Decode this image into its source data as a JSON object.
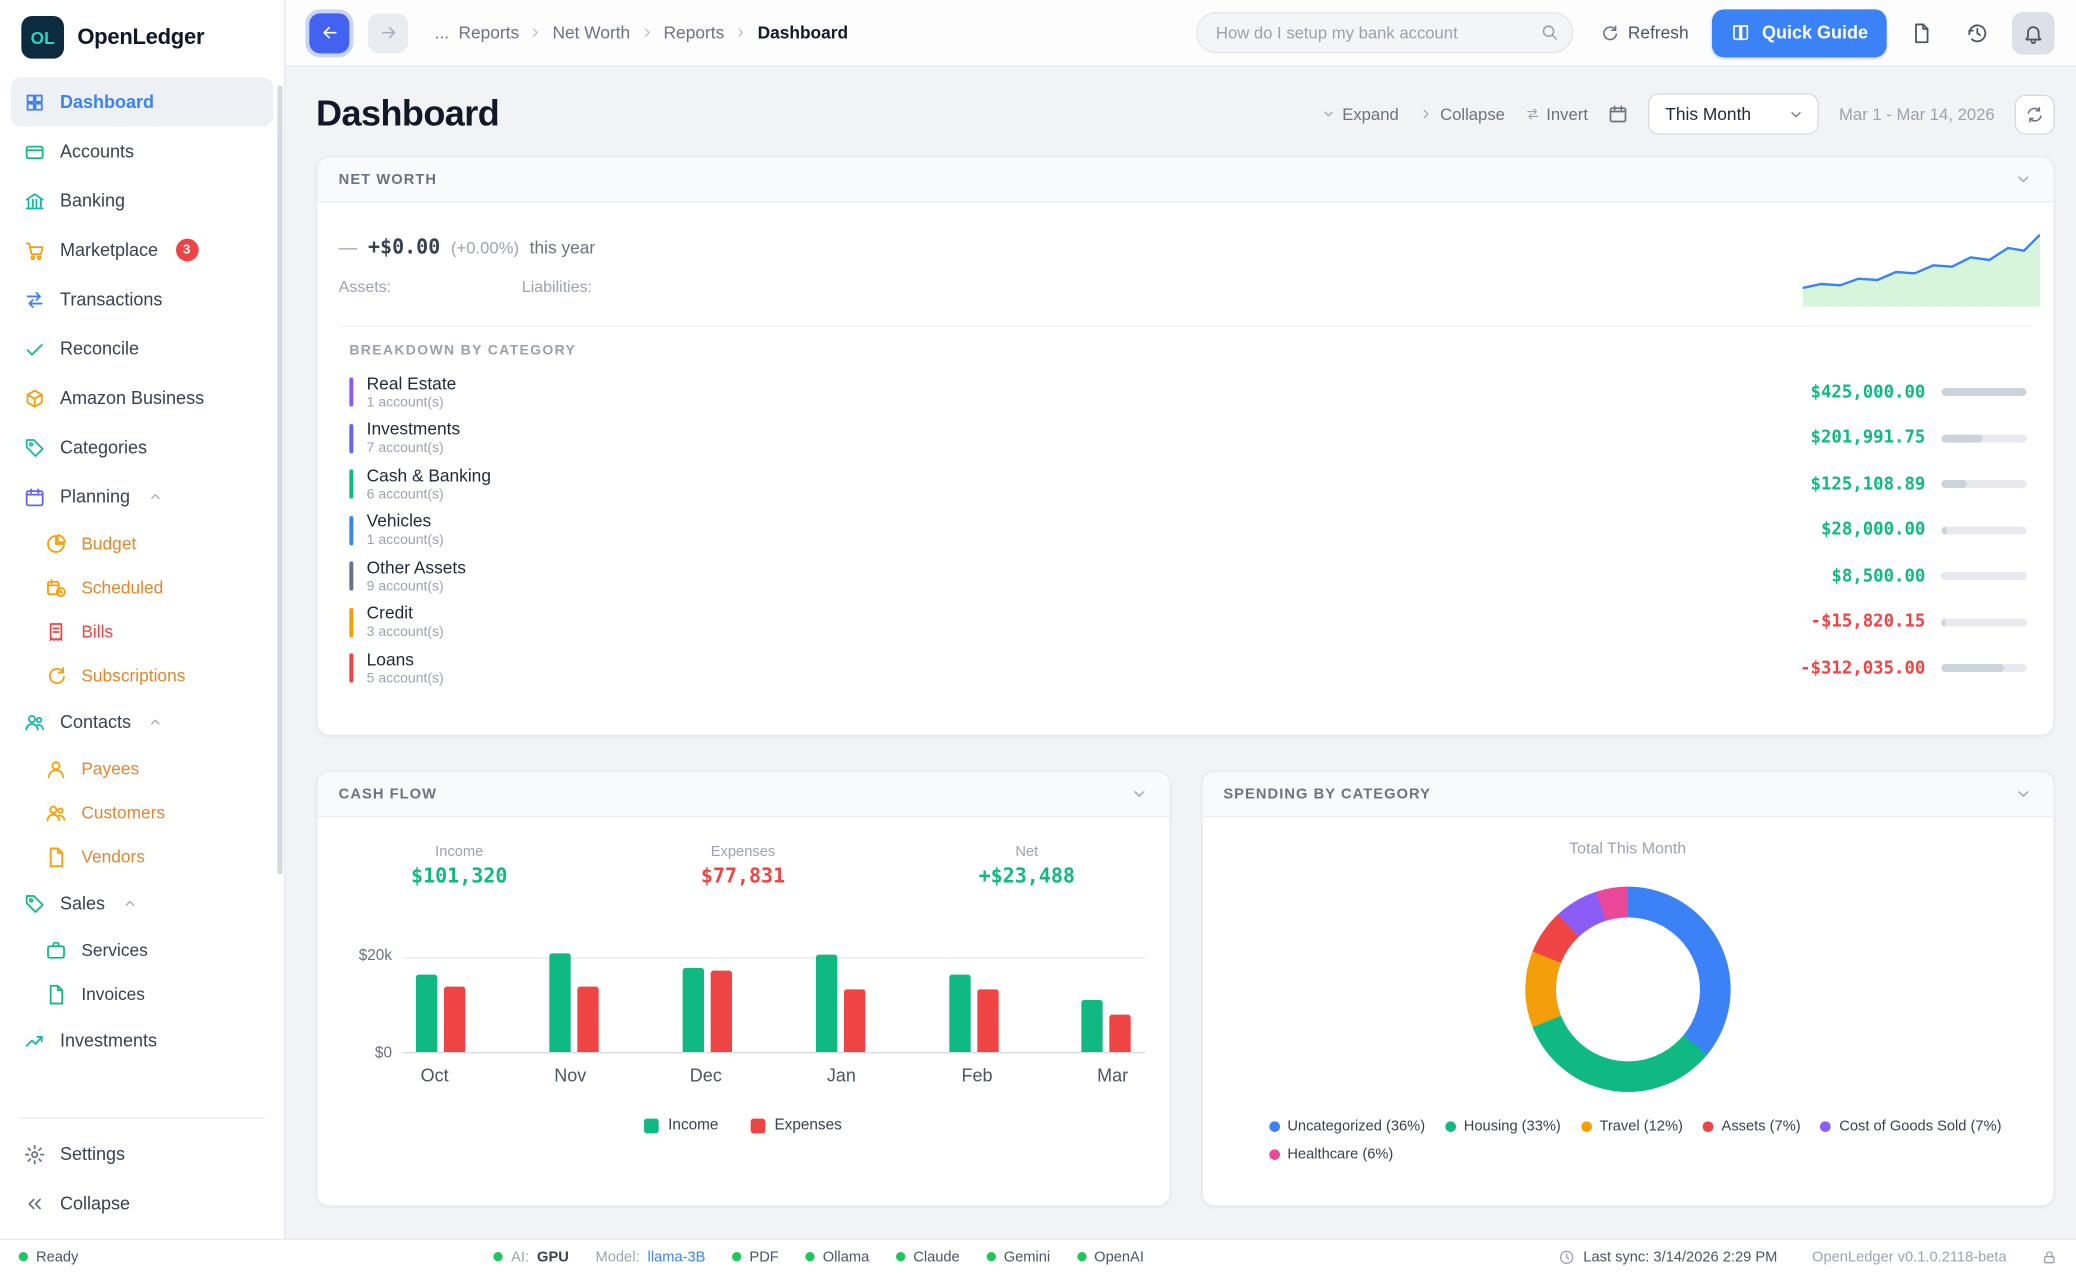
{
  "palette": {
    "accent_blue": "#3b82f6",
    "positive_green": "#10b981",
    "negative_red": "#ef4444",
    "teal": "#14b8a6",
    "orange": "#f59e0b",
    "purple": "#8b5cf6",
    "pink": "#ec4899"
  },
  "app": {
    "logo_text": "OL",
    "name": "OpenLedger"
  },
  "topbar": {
    "breadcrumb_ellipsis": "...",
    "breadcrumb": [
      "Reports",
      "Net Worth",
      "Reports",
      "Dashboard"
    ],
    "search_placeholder": "How do I setup my bank account",
    "refresh_label": "Refresh",
    "quick_guide_label": "Quick Guide"
  },
  "sidebar": {
    "items": [
      {
        "label": "Dashboard"
      },
      {
        "label": "Accounts"
      },
      {
        "label": "Banking"
      },
      {
        "label": "Marketplace",
        "badge": "3"
      },
      {
        "label": "Transactions"
      },
      {
        "label": "Reconcile"
      },
      {
        "label": "Amazon Business"
      },
      {
        "label": "Categories"
      },
      {
        "label": "Planning"
      },
      {
        "label": "Budget"
      },
      {
        "label": "Scheduled"
      },
      {
        "label": "Bills"
      },
      {
        "label": "Subscriptions"
      },
      {
        "label": "Contacts"
      },
      {
        "label": "Payees"
      },
      {
        "label": "Customers"
      },
      {
        "label": "Vendors"
      },
      {
        "label": "Sales"
      },
      {
        "label": "Services"
      },
      {
        "label": "Invoices"
      },
      {
        "label": "Investments"
      },
      {
        "label": "Settings"
      },
      {
        "label": "Collapse"
      }
    ]
  },
  "header": {
    "title": "Dashboard",
    "expand_label": "Expand",
    "collapse_label": "Collapse",
    "invert_label": "Invert",
    "period_selected": "This Month",
    "date_range": "Mar 1 - Mar 14, 2026"
  },
  "net_worth": {
    "section_title": "NET WORTH",
    "trend_dash": "—",
    "change_amount": "+$0.00",
    "change_percent": "(+0.00%)",
    "change_period": "this year",
    "assets_label": "Assets:",
    "liabilities_label": "Liabilities:",
    "breakdown_title": "BREAKDOWN BY CATEGORY",
    "rows": [
      {
        "name": "Real Estate",
        "accounts": "1 account(s)",
        "amount": "$425,000.00",
        "color": "#8b5cf6",
        "fill_pct": 100
      },
      {
        "name": "Investments",
        "accounts": "7 account(s)",
        "amount": "$201,991.75",
        "color": "#6366f1",
        "fill_pct": 48
      },
      {
        "name": "Cash & Banking",
        "accounts": "6 account(s)",
        "amount": "$125,108.89",
        "color": "#10b981",
        "fill_pct": 29
      },
      {
        "name": "Vehicles",
        "accounts": "1 account(s)",
        "amount": "$28,000.00",
        "color": "#3b82f6",
        "fill_pct": 7
      },
      {
        "name": "Other Assets",
        "accounts": "9 account(s)",
        "amount": "$8,500.00",
        "color": "#64748b",
        "fill_pct": 2
      },
      {
        "name": "Credit",
        "accounts": "3 account(s)",
        "amount": "-$15,820.15",
        "color": "#f59e0b",
        "fill_pct": 4
      },
      {
        "name": "Loans",
        "accounts": "5 account(s)",
        "amount": "-$312,035.00",
        "color": "#ef4444",
        "fill_pct": 73
      }
    ]
  },
  "cash_flow": {
    "section_title": "CASH FLOW",
    "stats": [
      {
        "label": "Income",
        "value": "$101,320",
        "color": "#10b981"
      },
      {
        "label": "Expenses",
        "value": "$77,831",
        "color": "#ef4444"
      },
      {
        "label": "Net",
        "value": "+$23,488",
        "color": "#10b981"
      }
    ],
    "chart_data": {
      "type": "bar",
      "categories": [
        "Oct",
        "Nov",
        "Dec",
        "Jan",
        "Feb",
        "Mar"
      ],
      "series": [
        {
          "name": "Income",
          "color": "#10b981",
          "values": [
            16000,
            20500,
            17600,
            20200,
            16200,
            10820
          ]
        },
        {
          "name": "Expenses",
          "color": "#ef4444",
          "values": [
            13500,
            13500,
            16900,
            13200,
            13000,
            7731
          ]
        }
      ],
      "ymax": 20000,
      "yticks": [
        "$20k",
        "$0"
      ]
    },
    "legend": [
      "Income",
      "Expenses"
    ]
  },
  "spending": {
    "section_title": "SPENDING BY CATEGORY",
    "subtitle": "Total This Month",
    "chart_data": {
      "type": "donut",
      "labels": [
        "Uncategorized",
        "Housing",
        "Travel",
        "Assets",
        "Cost of Goods Sold",
        "Healthcare"
      ],
      "values": [
        36,
        33,
        12,
        7,
        7,
        6
      ],
      "colors": [
        "#3b82f6",
        "#10b981",
        "#f59e0b",
        "#ef4444",
        "#8b5cf6",
        "#ec4899"
      ]
    },
    "legend": [
      "Uncategorized (36%)",
      "Housing (33%)",
      "Travel (12%)",
      "Assets (7%)",
      "Cost of Goods Sold (7%)",
      "Healthcare (6%)"
    ]
  },
  "statusbar": {
    "ready": "Ready",
    "ai_label": "AI:",
    "ai_value": "GPU",
    "model_label": "Model:",
    "model_value": "llama-3B",
    "pdf": "PDF",
    "services": [
      "Ollama",
      "Claude",
      "Gemini",
      "OpenAI"
    ],
    "last_sync": "Last sync: 3/14/2026 2:29 PM",
    "version": "OpenLedger v0.1.0.2118-beta"
  }
}
